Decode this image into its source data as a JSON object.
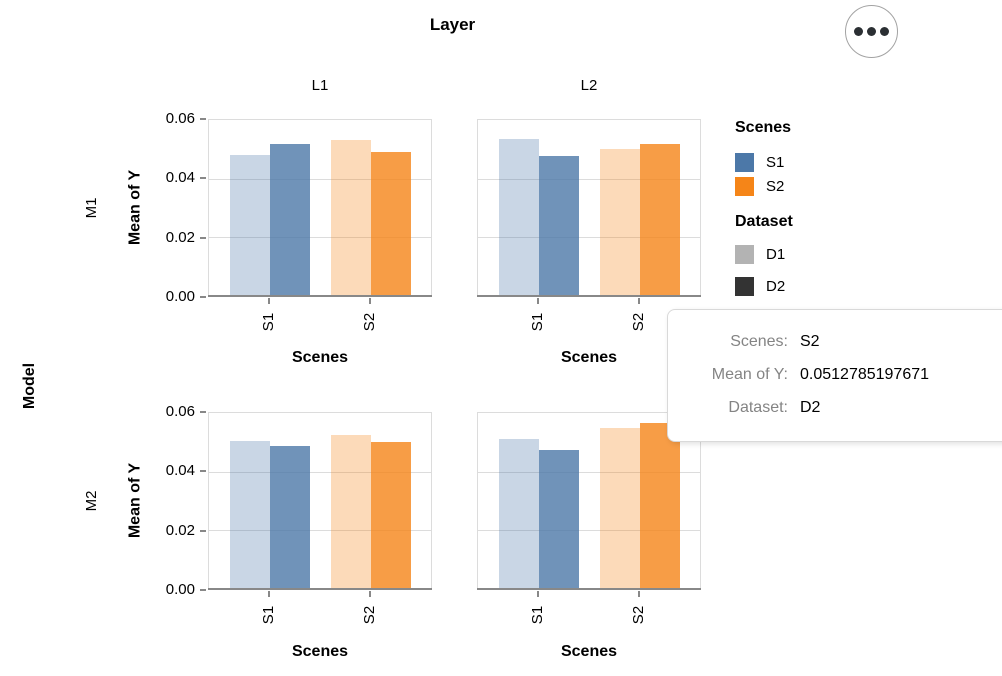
{
  "facets": {
    "column_title": "Layer",
    "row_title": "Model",
    "columns": [
      {
        "label": "L1"
      },
      {
        "label": "L2"
      }
    ],
    "rows": [
      {
        "label": "M1"
      },
      {
        "label": "M2"
      }
    ]
  },
  "axes": {
    "y_title": "Mean of Y",
    "x_title": "Scenes",
    "y_tick_labels": [
      "0.06",
      "0.04",
      "0.02",
      "0.00"
    ],
    "x_tick_labels": [
      "S1",
      "S2"
    ]
  },
  "legend": {
    "scenes_title": "Scenes",
    "scenes_items": [
      {
        "label": "S1",
        "color": "#4c78a8"
      },
      {
        "label": "S2",
        "color": "#f58518"
      }
    ],
    "dataset_title": "Dataset",
    "dataset_items": [
      {
        "label": "D1",
        "color": "#b3b3b3"
      },
      {
        "label": "D2",
        "color": "#333333"
      }
    ]
  },
  "tooltip": {
    "rows": [
      {
        "key": "Scenes:",
        "value": "S2"
      },
      {
        "key": "Mean of Y:",
        "value": "0.0512785197671"
      },
      {
        "key": "Dataset:",
        "value": "D2"
      }
    ]
  },
  "actions": {
    "icon": "ellipsis"
  },
  "chart_data": {
    "type": "bar",
    "title": "Layer",
    "facet": {
      "column_field": "Layer",
      "row_field": "Model"
    },
    "xlabel": "Scenes",
    "ylabel": "Mean of Y",
    "ylim": [
      0,
      0.06
    ],
    "y_ticks": [
      0,
      0.02,
      0.04,
      0.06
    ],
    "grid": true,
    "legend_position": "right",
    "categories": [
      "S1",
      "S2"
    ],
    "datasets": [
      "D1",
      "D2"
    ],
    "colors": {
      "S1": "#4c78a8",
      "S2": "#f58518"
    },
    "opacity": {
      "D1": 0.3,
      "D2": 0.8
    },
    "panels": [
      {
        "row": "M1",
        "column": "L1",
        "values": {
          "S1": {
            "D1": 0.0475,
            "D2": 0.0514
          },
          "S2": {
            "D1": 0.0527,
            "D2": 0.0485
          }
        }
      },
      {
        "row": "M1",
        "column": "L2",
        "values": {
          "S1": {
            "D1": 0.0529,
            "D2": 0.0473
          },
          "S2": {
            "D1": 0.0496,
            "D2": 0.0512785197671
          }
        }
      },
      {
        "row": "M2",
        "column": "L1",
        "values": {
          "S1": {
            "D1": 0.05,
            "D2": 0.0483
          },
          "S2": {
            "D1": 0.0519,
            "D2": 0.0497
          }
        }
      },
      {
        "row": "M2",
        "column": "L2",
        "values": {
          "S1": {
            "D1": 0.0506,
            "D2": 0.0469
          },
          "S2": {
            "D1": 0.0543,
            "D2": 0.0559
          }
        }
      }
    ]
  }
}
